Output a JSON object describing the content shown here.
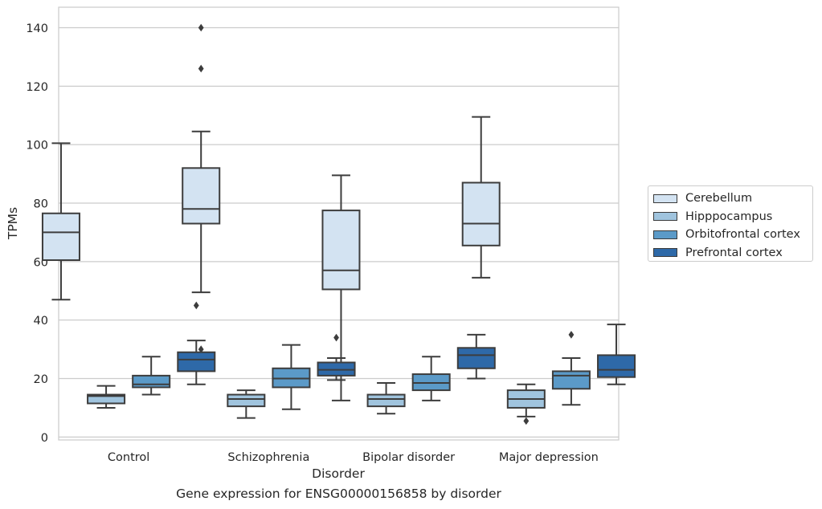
{
  "chart_data": {
    "type": "box",
    "caption": "Gene expression for ENSG00000156858 by disorder",
    "xlabel": "Disorder",
    "ylabel": "TPMs",
    "ylim": [
      -1,
      147
    ],
    "yticks": [
      0,
      20,
      40,
      60,
      80,
      100,
      120,
      140
    ],
    "grid": true,
    "legend_position": "right",
    "categories": [
      "Control",
      "Schizophrenia",
      "Bipolar disorder",
      "Major depression"
    ],
    "series": [
      {
        "name": "Cerebellum",
        "color": "#d3e3f2",
        "boxes": [
          {
            "min": 47,
            "q1": 60.5,
            "median": 70,
            "q3": 76.5,
            "max": 100.5,
            "outliers": []
          },
          {
            "min": 49.5,
            "q1": 73,
            "median": 78,
            "q3": 92,
            "max": 104.5,
            "outliers": [
              30,
              126,
              140
            ]
          },
          {
            "min": 12.5,
            "q1": 50.5,
            "median": 57,
            "q3": 77.5,
            "max": 89.5,
            "outliers": []
          },
          {
            "min": 54.5,
            "q1": 65.5,
            "median": 73,
            "q3": 87,
            "max": 109.5,
            "outliers": []
          }
        ]
      },
      {
        "name": "Hipppocampus",
        "color": "#a0c4de",
        "boxes": [
          {
            "min": 10,
            "q1": 11.5,
            "median": 14,
            "q3": 14.5,
            "max": 17.5,
            "outliers": []
          },
          {
            "min": 6.5,
            "q1": 10.5,
            "median": 13,
            "q3": 14.5,
            "max": 16,
            "outliers": []
          },
          {
            "min": 8,
            "q1": 10.5,
            "median": 13,
            "q3": 14.5,
            "max": 18.5,
            "outliers": []
          },
          {
            "min": 7,
            "q1": 10,
            "median": 13,
            "q3": 16,
            "max": 18,
            "outliers": [
              5.5
            ]
          }
        ]
      },
      {
        "name": "Orbitofrontal cortex",
        "color": "#5b9ac8",
        "boxes": [
          {
            "min": 14.5,
            "q1": 17,
            "median": 18,
            "q3": 21,
            "max": 27.5,
            "outliers": []
          },
          {
            "min": 9.5,
            "q1": 17,
            "median": 20,
            "q3": 23.5,
            "max": 31.5,
            "outliers": []
          },
          {
            "min": 12.5,
            "q1": 16,
            "median": 18.5,
            "q3": 21.5,
            "max": 27.5,
            "outliers": []
          },
          {
            "min": 11,
            "q1": 16.5,
            "median": 21,
            "q3": 22.5,
            "max": 27,
            "outliers": [
              35
            ]
          }
        ]
      },
      {
        "name": "Prefrontal cortex",
        "color": "#2e69a8",
        "boxes": [
          {
            "min": 18,
            "q1": 22.5,
            "median": 26.5,
            "q3": 29,
            "max": 33,
            "outliers": [
              45
            ]
          },
          {
            "min": 19.5,
            "q1": 21,
            "median": 23,
            "q3": 25.5,
            "max": 27,
            "outliers": [
              34
            ]
          },
          {
            "min": 20,
            "q1": 23.5,
            "median": 28,
            "q3": 30.5,
            "max": 35,
            "outliers": []
          },
          {
            "min": 18,
            "q1": 20.5,
            "median": 23,
            "q3": 28,
            "max": 38.5,
            "outliers": []
          }
        ]
      }
    ]
  }
}
